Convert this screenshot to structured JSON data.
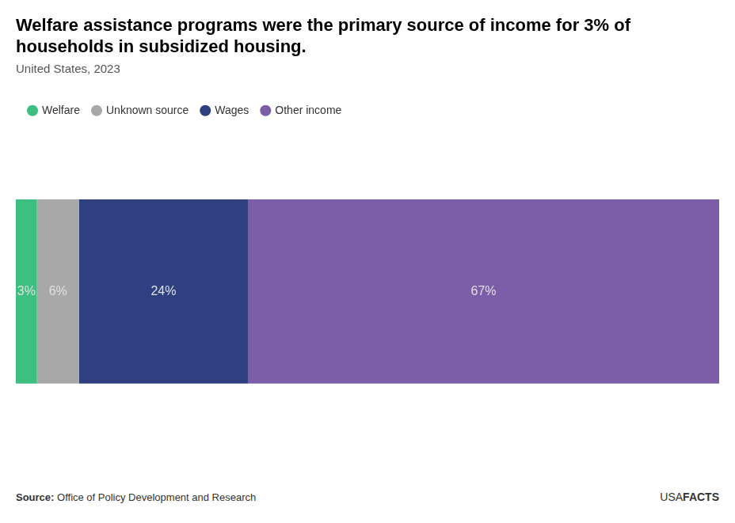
{
  "chart_data": {
    "type": "bar",
    "orientation": "horizontal",
    "stacked": true,
    "title": "Welfare assistance programs were the primary source of income for 3% of\nhouseholds in subsidized housing.",
    "subtitle": "United States, 2023",
    "categories": [
      null
    ],
    "series": [
      {
        "name": "Welfare",
        "color": "#3dbf82",
        "values": [
          3
        ],
        "value_labels": [
          "3%"
        ]
      },
      {
        "name": "Unknown source",
        "color": "#a8a8a8",
        "values": [
          6
        ],
        "value_labels": [
          "6%"
        ]
      },
      {
        "name": "Wages",
        "color": "#2e4080",
        "values": [
          24
        ],
        "value_labels": [
          "24%"
        ]
      },
      {
        "name": "Other income",
        "color": "#7b5ea7",
        "values": [
          67
        ],
        "value_labels": [
          "67%"
        ]
      }
    ],
    "xlim": [
      0,
      100
    ],
    "data_labels": true,
    "tick_labels": false,
    "grid": false,
    "legend": "upper left",
    "annotations": [
      "Source:",
      "Office of Policy Development and Research",
      "USA",
      "FACTS"
    ]
  }
}
